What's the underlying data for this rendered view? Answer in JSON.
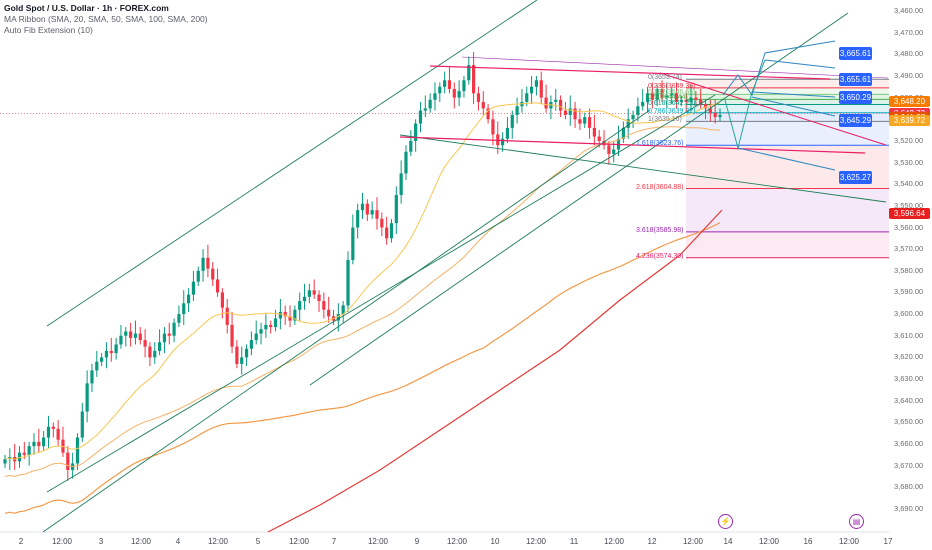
{
  "legend": {
    "title": "Gold Spot / U.S. Dollar · 1h · FOREX.com",
    "indicator1": "MA Ribbon (SMA, 20, SMA, 50, SMA, 100, SMA, 200)",
    "indicator2": "Auto Fib Extension (10)"
  },
  "y_axis_labels": [
    "3,690.00",
    "3,680.00",
    "3,670.00",
    "3,660.00",
    "3,650.00",
    "3,640.00",
    "3,630.00",
    "3,620.00",
    "3,610.00",
    "3,600.00",
    "3,590.00",
    "3,580.00",
    "3,570.00",
    "3,560.00",
    "3,550.00",
    "3,540.00",
    "3,530.00",
    "3,520.00",
    "3,510.00",
    "3,500.00",
    "3,490.00",
    "3,480.00",
    "3,470.00",
    "3,460.00"
  ],
  "x_axis_labels": [
    {
      "label": "2",
      "x": 21
    },
    {
      "label": "12:00",
      "x": 62
    },
    {
      "label": "3",
      "x": 101
    },
    {
      "label": "12:00",
      "x": 141
    },
    {
      "label": "4",
      "x": 178
    },
    {
      "label": "12:00",
      "x": 218
    },
    {
      "label": "5",
      "x": 258
    },
    {
      "label": "12:00",
      "x": 299
    },
    {
      "label": "7",
      "x": 334
    },
    {
      "label": "12:00",
      "x": 378
    },
    {
      "label": "9",
      "x": 417
    },
    {
      "label": "12:00",
      "x": 457
    },
    {
      "label": "10",
      "x": 495
    },
    {
      "label": "12:00",
      "x": 536
    },
    {
      "label": "11",
      "x": 574
    },
    {
      "label": "12:00",
      "x": 614
    },
    {
      "label": "12",
      "x": 652
    },
    {
      "label": "12:00",
      "x": 693
    },
    {
      "label": "14",
      "x": 728
    },
    {
      "label": "12:00",
      "x": 769
    },
    {
      "label": "16",
      "x": 808
    },
    {
      "label": "12:00",
      "x": 849
    },
    {
      "label": "17",
      "x": 888
    }
  ],
  "price_labels": [
    {
      "text": "3,648.20",
      "price": 3648.2,
      "color": "#f57c00"
    },
    {
      "text": "3,642.72",
      "price": 3642.72,
      "color": "#f23645"
    },
    {
      "text": "3,641.27",
      "price": 3641.27,
      "color": "#e65100"
    },
    {
      "text": "3,639.72",
      "price": 3639.72,
      "color": "#f5a623"
    },
    {
      "text": "3,596.64",
      "price": 3596.64,
      "color": "#e91e1e"
    }
  ],
  "callouts": [
    {
      "text": "3,665.61",
      "price": 3670.5
    },
    {
      "text": "3,655.61",
      "price": 3658.5
    },
    {
      "text": "3,650.29",
      "price": 3650.3
    },
    {
      "text": "3,645.29",
      "price": 3639.5
    },
    {
      "text": "3,625.27",
      "price": 3613.5
    }
  ],
  "fib_levels": [
    {
      "ratio": "0(3653.74)",
      "price": 3658.5,
      "color": "#787b86"
    },
    {
      "ratio": "0.236(3649.36)",
      "price": 3654.5,
      "color": "#f23645"
    },
    {
      "ratio": "0.382(3646.65)",
      "price": 3651.5,
      "color": "#81c784"
    },
    {
      "ratio": "0.5(3644.44)",
      "price": 3649.2,
      "color": "#4caf50"
    },
    {
      "ratio": "0.618(3642.23)",
      "price": 3646.8,
      "color": "#089981"
    },
    {
      "ratio": "0.786(3639.32)",
      "price": 3643.0,
      "color": "#00acc1"
    },
    {
      "ratio": "1(3635.16)",
      "price": 3639.0,
      "color": "#787b86"
    },
    {
      "ratio": "1.618(3623.76)",
      "price": 3628.0,
      "color": "#2962ff"
    },
    {
      "ratio": "2.618(3604.88)",
      "price": 3608.0,
      "color": "#f23645"
    },
    {
      "ratio": "3.618(3585.98)",
      "price": 3588.0,
      "color": "#9c27b0"
    },
    {
      "ratio": "4.236(3574.30)",
      "price": 3576.0,
      "color": "#e91e63"
    }
  ],
  "events": [
    {
      "icon": "lightning-icon",
      "glyph": "⚡",
      "x": 724
    },
    {
      "icon": "us-flag-icon",
      "glyph": "▤",
      "x": 855
    }
  ],
  "chart_data": {
    "type": "line",
    "title": "Gold Spot / U.S. Dollar · 1h · FOREX.com",
    "xlabel": "",
    "ylabel": "",
    "ylim": [
      3455,
      3690
    ],
    "y_ticks": [
      3460,
      3470,
      3480,
      3490,
      3500,
      3510,
      3520,
      3530,
      3540,
      3550,
      3560,
      3570,
      3580,
      3590,
      3600,
      3610,
      3620,
      3630,
      3640,
      3650,
      3660,
      3670,
      3680,
      3690
    ],
    "x_tick_labels": [
      "2",
      "12:00",
      "3",
      "12:00",
      "4",
      "12:00",
      "5",
      "12:00",
      "7",
      "12:00",
      "9",
      "12:00",
      "10",
      "12:00",
      "11",
      "12:00",
      "12",
      "12:00",
      "14",
      "12:00",
      "16",
      "12:00",
      "17"
    ],
    "price_close_series": [
      3483,
      3484,
      3482,
      3486,
      3485,
      3489,
      3491,
      3489,
      3493,
      3498,
      3497,
      3492,
      3486,
      3478,
      3481,
      3493,
      3505,
      3518,
      3524,
      3528,
      3530,
      3533,
      3532,
      3536,
      3540,
      3542,
      3539,
      3541,
      3538,
      3535,
      3530,
      3533,
      3537,
      3541,
      3540,
      3546,
      3550,
      3555,
      3559,
      3565,
      3570,
      3576,
      3571,
      3566,
      3560,
      3553,
      3545,
      3535,
      3527,
      3530,
      3534,
      3538,
      3541,
      3543,
      3545,
      3544,
      3548,
      3551,
      3549,
      3547,
      3552,
      3556,
      3558,
      3561,
      3559,
      3556,
      3552,
      3549,
      3547,
      3550,
      3554,
      3575,
      3590,
      3598,
      3601,
      3596,
      3598,
      3594,
      3590,
      3585,
      3592,
      3605,
      3615,
      3625,
      3630,
      3638,
      3644,
      3645,
      3649,
      3652,
      3655,
      3658,
      3654,
      3650,
      3653,
      3658,
      3665,
      3652,
      3648,
      3645,
      3640,
      3633,
      3628,
      3631,
      3636,
      3642,
      3646,
      3648,
      3652,
      3655,
      3658,
      3650,
      3645,
      3648,
      3649,
      3644,
      3642,
      3645,
      3640,
      3638,
      3641,
      3636,
      3632,
      3630,
      3628,
      3624,
      3626,
      3631,
      3636,
      3640,
      3642,
      3646,
      3648,
      3652,
      3649,
      3654,
      3650,
      3651,
      3652,
      3648,
      3649,
      3648,
      3650,
      3649,
      3647,
      3645,
      3643,
      3641,
      3642
    ],
    "series": [
      {
        "name": "SMA 20",
        "color": "#f9c74f"
      },
      {
        "name": "SMA 50",
        "color": "#f7b267"
      },
      {
        "name": "SMA 100",
        "color": "#f39a49"
      },
      {
        "name": "SMA 200",
        "color": "#e53935"
      }
    ],
    "last_price": 3642.72
  }
}
